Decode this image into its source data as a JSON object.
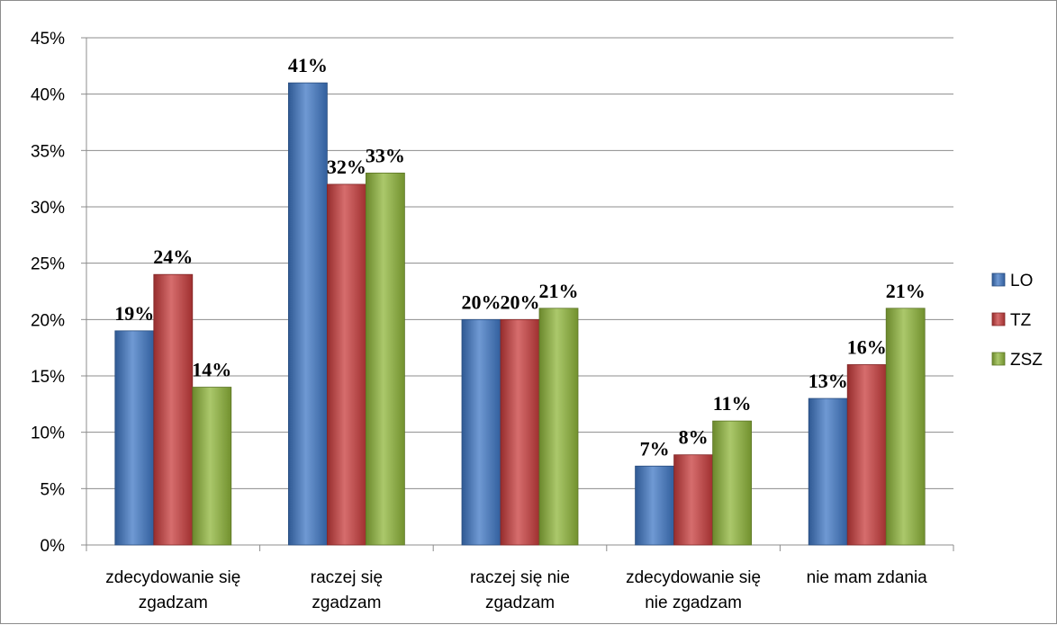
{
  "chart_data": {
    "type": "bar",
    "categories": [
      [
        "zdecydowanie się",
        "zgadzam"
      ],
      [
        "raczej się",
        "zgadzam"
      ],
      [
        "raczej się nie",
        "zgadzam"
      ],
      [
        "zdecydowanie się",
        "nie zgadzam"
      ],
      [
        "nie mam zdania"
      ]
    ],
    "series": [
      {
        "name": "LO",
        "color": "#3f77c4",
        "values": [
          19,
          41,
          20,
          7,
          13
        ],
        "labels": [
          "19%",
          "41%",
          "20%",
          "7%",
          "13%"
        ]
      },
      {
        "name": "TZ",
        "color": "#c83c3c",
        "values": [
          24,
          32,
          20,
          8,
          16
        ],
        "labels": [
          "24%",
          "32%",
          "20%",
          "8%",
          "16%"
        ]
      },
      {
        "name": "ZSZ",
        "color": "#8fb53a",
        "values": [
          14,
          33,
          21,
          11,
          21
        ],
        "labels": [
          "14%",
          "33%",
          "21%",
          "11%",
          "21%"
        ]
      }
    ],
    "ylim": [
      0,
      45
    ],
    "yticks": [
      "0%",
      "5%",
      "10%",
      "15%",
      "20%",
      "25%",
      "30%",
      "35%",
      "40%",
      "45%"
    ],
    "grid": true,
    "legend_position": "right",
    "title": "",
    "xlabel": "",
    "ylabel": ""
  }
}
